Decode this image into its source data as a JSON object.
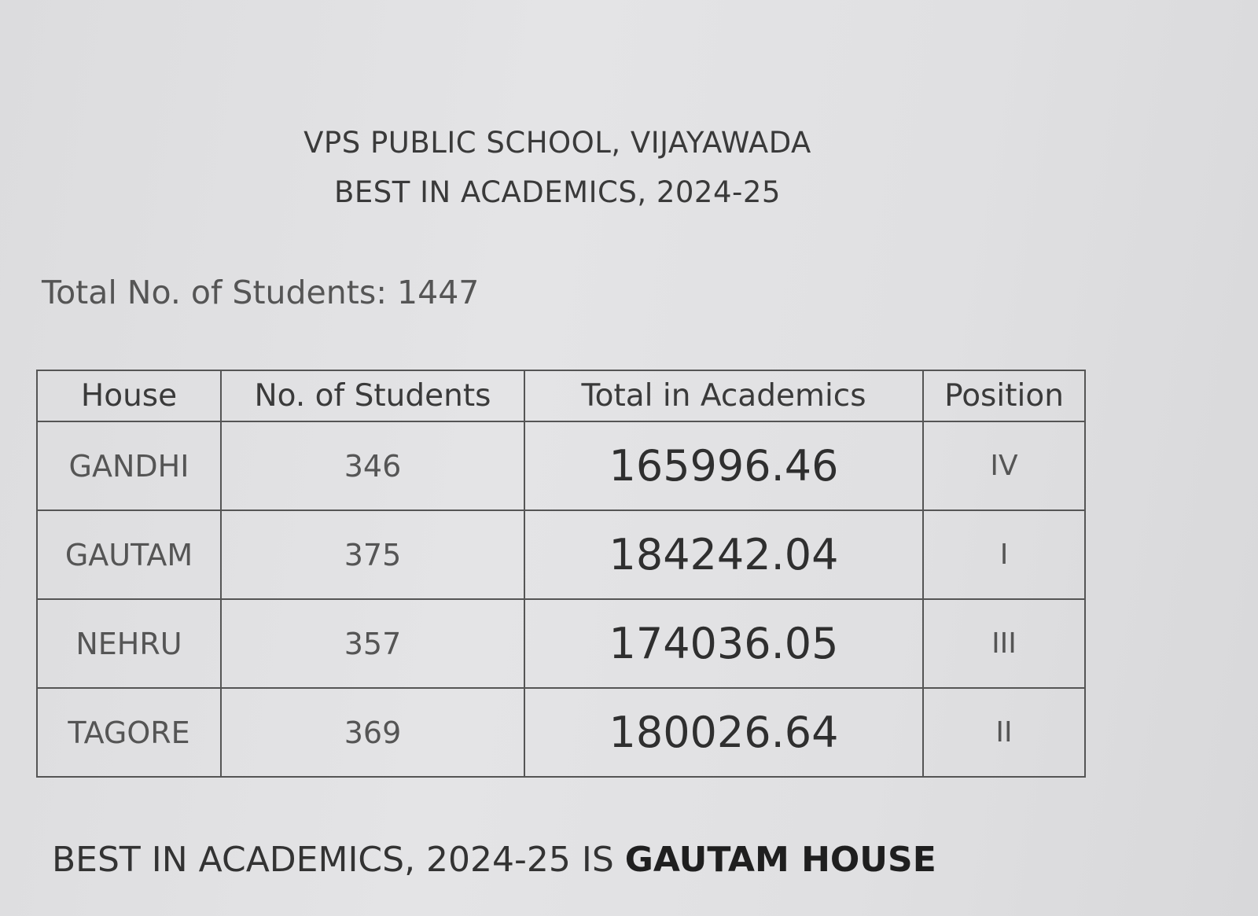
{
  "header": {
    "school": "VPS PUBLIC SCHOOL, VIJAYAWADA",
    "subtitle": "BEST IN ACADEMICS, 2024-25"
  },
  "total_students": "Total No. of Students: 1447",
  "table": {
    "columns": [
      "House",
      "No. of Students",
      "Total in Academics",
      "Position"
    ],
    "rows": [
      {
        "house": "GANDHI",
        "students": "346",
        "total": "165996.46",
        "position": "IV"
      },
      {
        "house": "GAUTAM",
        "students": "375",
        "total": "184242.04",
        "position": "I"
      },
      {
        "house": "NEHRU",
        "students": "357",
        "total": "174036.05",
        "position": "III"
      },
      {
        "house": "TAGORE",
        "students": "369",
        "total": "180026.64",
        "position": "II"
      }
    ]
  },
  "footer": {
    "text": "BEST IN ACADEMICS, 2024-25 IS ",
    "winner": "GAUTAM HOUSE"
  }
}
